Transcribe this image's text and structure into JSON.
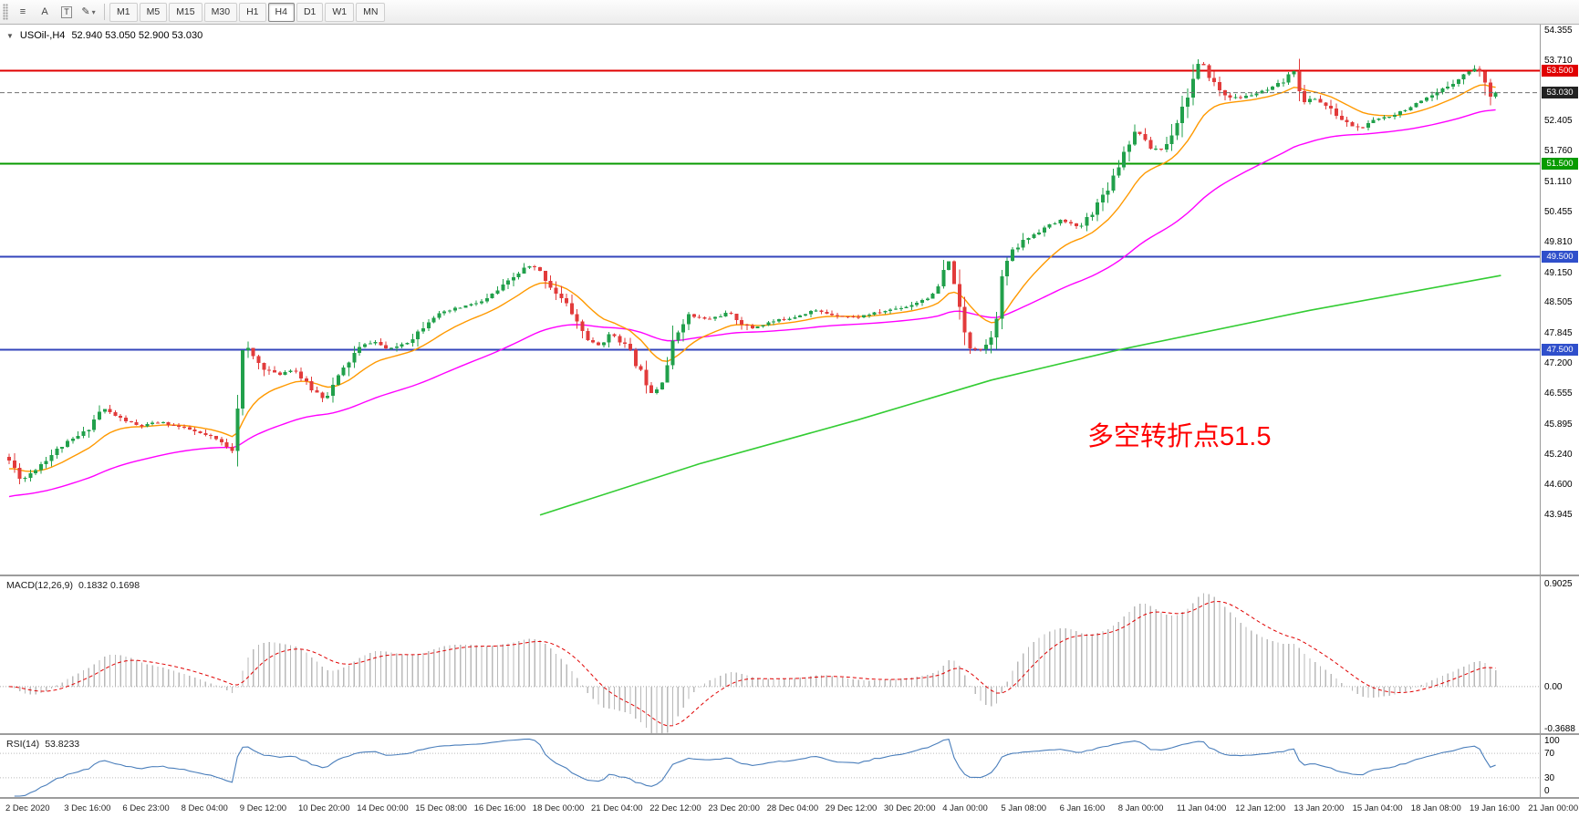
{
  "toolbar": {
    "tools": [
      {
        "id": "chart-list",
        "glyph": "≡",
        "boxed": false,
        "dropdown": false
      },
      {
        "id": "cursor",
        "glyph": "A",
        "boxed": false,
        "dropdown": false
      },
      {
        "id": "text-label",
        "glyph": "T",
        "boxed": true,
        "dropdown": false
      },
      {
        "id": "draw",
        "glyph": "✎",
        "boxed": false,
        "dropdown": true
      }
    ],
    "timeframes": [
      "M1",
      "M5",
      "M15",
      "M30",
      "H1",
      "H4",
      "D1",
      "W1",
      "MN"
    ],
    "active_timeframe": "H4"
  },
  "main_chart": {
    "header": {
      "collapse_icon": "▼",
      "symbol_period": "USOil-,H4",
      "ohlc": "52.940 53.050 52.900 53.030"
    },
    "annotation": {
      "text": "多空转折点51.5",
      "color": "#ff0000"
    },
    "price_axis": {
      "ticks": [
        "54.355",
        "53.710",
        "52.405",
        "51.760",
        "51.110",
        "50.455",
        "49.810",
        "49.150",
        "48.505",
        "47.845",
        "47.200",
        "46.555",
        "45.895",
        "45.240",
        "44.600",
        "43.945"
      ],
      "badges": [
        {
          "value": "53.500",
          "color": "#e00000"
        },
        {
          "value": "53.030",
          "color": "#222222"
        },
        {
          "value": "51.500",
          "color": "#089b00"
        },
        {
          "value": "49.500",
          "color": "#2f4fcb"
        },
        {
          "value": "47.500",
          "color": "#2f4fcb"
        }
      ]
    }
  },
  "indicators": {
    "macd": {
      "label": "MACD(12,26,9)",
      "values": "0.1832 0.1698",
      "axis_labels": [
        "0.9025",
        "0.00",
        "-0.3688"
      ]
    },
    "rsi": {
      "label": "RSI(14)",
      "value": "53.8233",
      "axis_labels": [
        "100",
        "70",
        "30",
        "0"
      ]
    }
  },
  "time_axis": {
    "labels": [
      "2 Dec 2020",
      "3 Dec 16:00",
      "6 Dec 23:00",
      "8 Dec 04:00",
      "9 Dec 12:00",
      "10 Dec 20:00",
      "14 Dec 00:00",
      "15 Dec 08:00",
      "16 Dec 16:00",
      "18 Dec 00:00",
      "21 Dec 04:00",
      "22 Dec 12:00",
      "23 Dec 20:00",
      "28 Dec 04:00",
      "29 Dec 12:00",
      "30 Dec 20:00",
      "4 Jan 00:00",
      "5 Jan 08:00",
      "6 Jan 16:00",
      "8 Jan 00:00",
      "11 Jan 04:00",
      "12 Jan 12:00",
      "13 Jan 20:00",
      "15 Jan 04:00",
      "18 Jan 08:00",
      "19 Jan 16:00",
      "21 Jan 00:00"
    ]
  },
  "chart_data": [
    {
      "type": "candlestick",
      "title": "USOil-,H4",
      "bars": 281,
      "y_axis": {
        "top": 54.355,
        "bottom": 43.945
      },
      "last_ohlc": {
        "open": 52.94,
        "high": 53.05,
        "low": 52.9,
        "close": 53.03
      },
      "current_price": 53.03,
      "up_color": "#21a04b",
      "down_color": "#e23b3b",
      "seed": 11,
      "close_path_anchors": [
        [
          0,
          45.2
        ],
        [
          3,
          44.7
        ],
        [
          6,
          45.0
        ],
        [
          10,
          45.4
        ],
        [
          15,
          45.75
        ],
        [
          18,
          46.25
        ],
        [
          21,
          46.05
        ],
        [
          25,
          45.85
        ],
        [
          29,
          45.95
        ],
        [
          34,
          45.8
        ],
        [
          39,
          45.6
        ],
        [
          42,
          45.4
        ],
        [
          43,
          45.35
        ],
        [
          44,
          47.3
        ],
        [
          45,
          47.55
        ],
        [
          48,
          47.15
        ],
        [
          51,
          46.95
        ],
        [
          54,
          47.1
        ],
        [
          57,
          46.7
        ],
        [
          60,
          46.45
        ],
        [
          63,
          47.0
        ],
        [
          66,
          47.5
        ],
        [
          69,
          47.7
        ],
        [
          72,
          47.5
        ],
        [
          76,
          47.7
        ],
        [
          80,
          48.2
        ],
        [
          85,
          48.4
        ],
        [
          90,
          48.55
        ],
        [
          95,
          49.0
        ],
        [
          98,
          49.3
        ],
        [
          100,
          49.25
        ],
        [
          103,
          48.8
        ],
        [
          106,
          48.4
        ],
        [
          109,
          47.8
        ],
        [
          111,
          47.55
        ],
        [
          114,
          47.85
        ],
        [
          117,
          47.55
        ],
        [
          120,
          46.9
        ],
        [
          122,
          46.55
        ],
        [
          124,
          47.0
        ],
        [
          126,
          47.8
        ],
        [
          128,
          48.25
        ],
        [
          132,
          48.15
        ],
        [
          136,
          48.3
        ],
        [
          140,
          47.95
        ],
        [
          144,
          48.1
        ],
        [
          148,
          48.2
        ],
        [
          152,
          48.35
        ],
        [
          156,
          48.25
        ],
        [
          160,
          48.2
        ],
        [
          164,
          48.3
        ],
        [
          170,
          48.45
        ],
        [
          175,
          48.7
        ],
        [
          177,
          49.3
        ],
        [
          178,
          49.45
        ],
        [
          179,
          48.55
        ],
        [
          181,
          47.6
        ],
        [
          184,
          47.5
        ],
        [
          186,
          47.95
        ],
        [
          188,
          49.35
        ],
        [
          191,
          49.8
        ],
        [
          195,
          50.1
        ],
        [
          199,
          50.3
        ],
        [
          202,
          50.1
        ],
        [
          205,
          50.55
        ],
        [
          208,
          51.1
        ],
        [
          211,
          51.9
        ],
        [
          213,
          52.25
        ],
        [
          215,
          51.85
        ],
        [
          218,
          51.8
        ],
        [
          220,
          52.3
        ],
        [
          222,
          52.85
        ],
        [
          224,
          53.45
        ],
        [
          225,
          53.7
        ],
        [
          227,
          53.3
        ],
        [
          229,
          53.0
        ],
        [
          232,
          52.9
        ],
        [
          235,
          53.0
        ],
        [
          238,
          53.1
        ],
        [
          241,
          53.3
        ],
        [
          243,
          53.6
        ],
        [
          244,
          52.7
        ],
        [
          246,
          52.95
        ],
        [
          249,
          52.7
        ],
        [
          252,
          52.4
        ],
        [
          255,
          52.25
        ],
        [
          258,
          52.45
        ],
        [
          261,
          52.55
        ],
        [
          264,
          52.7
        ],
        [
          267,
          52.85
        ],
        [
          270,
          53.05
        ],
        [
          273,
          53.3
        ],
        [
          275,
          53.45
        ],
        [
          277,
          53.6
        ],
        [
          278,
          53.35
        ],
        [
          279,
          53.0
        ],
        [
          280,
          53.03
        ]
      ],
      "hlines": [
        {
          "price": 53.5,
          "color": "#e00000",
          "width": 2
        },
        {
          "price": 51.5,
          "color": "#089b00",
          "width": 2
        },
        {
          "price": 49.5,
          "color": "#3344bb",
          "width": 2
        },
        {
          "price": 47.5,
          "color": "#3344bb",
          "width": 2
        }
      ],
      "bid_line": {
        "price": 53.03,
        "color": "#707070"
      },
      "overlays": {
        "ma_fast": {
          "color": "#ff9900",
          "period": 14
        },
        "ma_mid": {
          "color": "#ff00ff",
          "period": 55
        },
        "ma_slow": {
          "color": "#33cc33",
          "anchors": [
            [
              100,
              43.95
            ],
            [
              130,
              45.05
            ],
            [
              160,
              46.0
            ],
            [
              185,
              46.85
            ],
            [
              209,
              47.5
            ],
            [
              245,
              48.35
            ],
            [
              281,
              49.1
            ]
          ]
        }
      }
    },
    {
      "type": "macd",
      "title": "MACD(12,26,9)",
      "fast": 12,
      "slow": 26,
      "signal": 9,
      "current_macd": 0.1832,
      "current_signal": 0.1698,
      "y_max": 0.9025,
      "y_min": -0.3688,
      "histogram_color": "#b9b9b9",
      "signal_color": "#e00000"
    },
    {
      "type": "rsi",
      "title": "RSI(14)",
      "period": 14,
      "current": 53.8233,
      "levels": [
        70,
        30
      ],
      "y_range": [
        0,
        100
      ],
      "line_color": "#4a7ebb"
    }
  ]
}
